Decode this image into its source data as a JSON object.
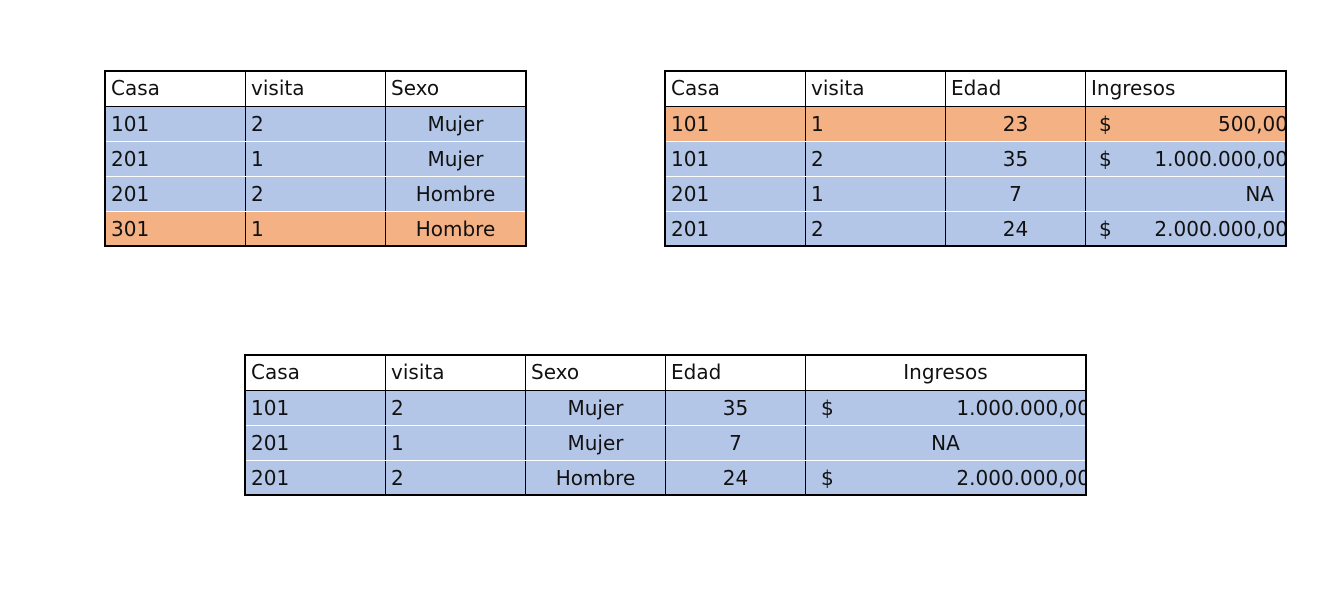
{
  "table1": {
    "headers": [
      "Casa",
      "visita",
      "Sexo"
    ],
    "rows": [
      [
        "101",
        "2",
        "Mujer"
      ],
      [
        "201",
        "1",
        "Mujer"
      ],
      [
        "201",
        "2",
        "Hombre"
      ],
      [
        "301",
        "1",
        "Hombre"
      ]
    ],
    "highlight_color_blue": "#b4c6e7",
    "highlight_color_orange": "#f4b183"
  },
  "table2": {
    "headers": [
      "Casa",
      "visita",
      "Edad",
      "Ingresos"
    ],
    "rows": [
      [
        "101",
        "1",
        "23",
        "$",
        "500,00"
      ],
      [
        "101",
        "2",
        "35",
        "$",
        "1.000.000,00"
      ],
      [
        "201",
        "1",
        "7",
        "",
        "NA"
      ],
      [
        "201",
        "2",
        "24",
        "$",
        "2.000.000,00"
      ]
    ]
  },
  "table3": {
    "headers": [
      "Casa",
      "visita",
      "Sexo",
      "Edad",
      "Ingresos"
    ],
    "rows": [
      [
        "101",
        "2",
        "Mujer",
        "35",
        "$",
        "1.000.000,00"
      ],
      [
        "201",
        "1",
        "Mujer",
        "7",
        "",
        "NA"
      ],
      [
        "201",
        "2",
        "Hombre",
        "24",
        "$",
        "2.000.000,00"
      ]
    ]
  }
}
